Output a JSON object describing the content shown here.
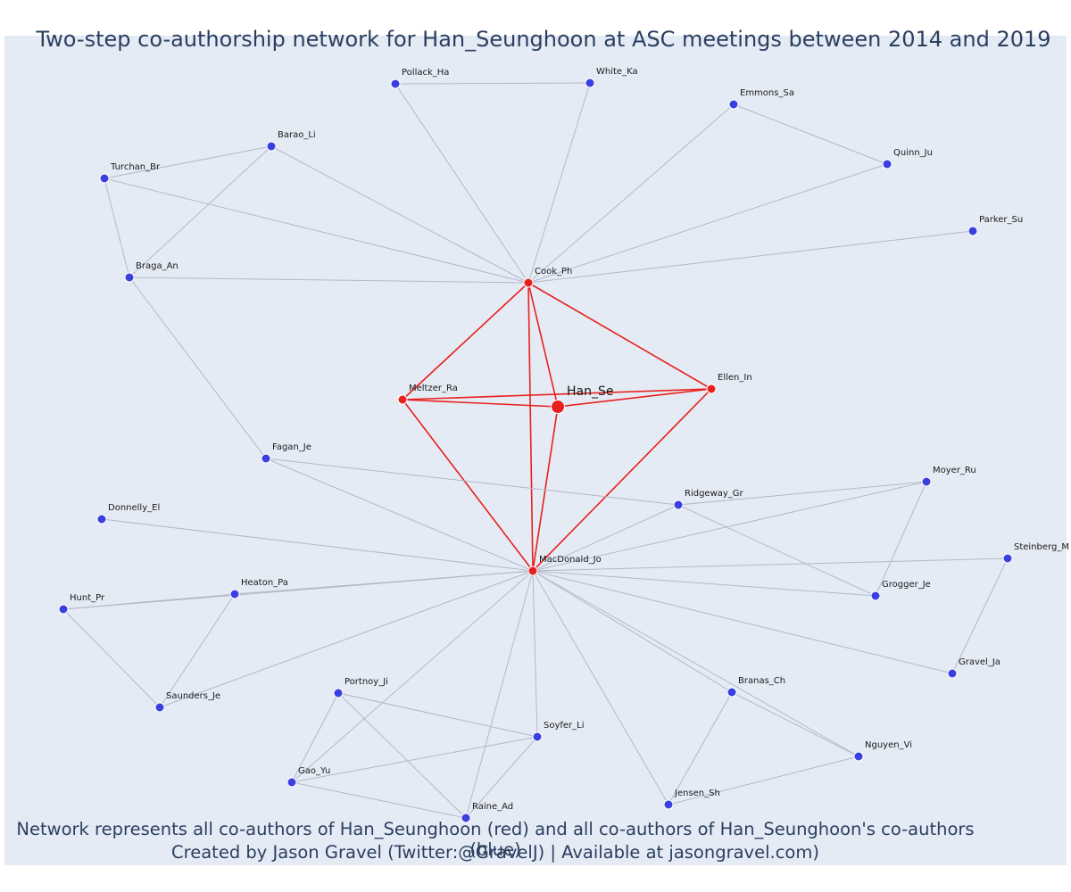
{
  "title": "Two-step co-authorship network for Han_Seunghoon at ASC meetings between 2014 and 2019",
  "footer": {
    "line1": "Network represents all co-authors of Han_Seunghoon (red) and all co-authors of Han_Seunghoon's co-authors (blue)",
    "line2": "Created by Jason Gravel (Twitter:@GravelJ) | Available at jasongravel.com)"
  },
  "colors": {
    "background": "#e5ebf5",
    "coauthor": "#e8201c",
    "second_step": "#3a3fe0",
    "red_edge": "#e8201c",
    "gray_edge": "#b4b8c8"
  },
  "nodes": [
    {
      "id": "Han_Se",
      "label": "Han_Se",
      "group": "ego"
    },
    {
      "id": "Cook_Ph",
      "label": "Cook_Ph",
      "group": "red"
    },
    {
      "id": "Meltzer_Ra",
      "label": "Meltzer_Ra",
      "group": "red"
    },
    {
      "id": "Ellen_In",
      "label": "Ellen_In",
      "group": "red"
    },
    {
      "id": "MacDonald_Jo",
      "label": "MacDonald_Jo",
      "group": "red"
    },
    {
      "id": "Pollack_Ha",
      "label": "Pollack_Ha",
      "group": "blue"
    },
    {
      "id": "White_Ka",
      "label": "White_Ka",
      "group": "blue"
    },
    {
      "id": "Emmons_Sa",
      "label": "Emmons_Sa",
      "group": "blue"
    },
    {
      "id": "Quinn_Ju",
      "label": "Quinn_Ju",
      "group": "blue"
    },
    {
      "id": "Parker_Su",
      "label": "Parker_Su",
      "group": "blue"
    },
    {
      "id": "Barao_Li",
      "label": "Barao_Li",
      "group": "blue"
    },
    {
      "id": "Turchan_Br",
      "label": "Turchan_Br",
      "group": "blue"
    },
    {
      "id": "Braga_An",
      "label": "Braga_An",
      "group": "blue"
    },
    {
      "id": "Fagan_Je",
      "label": "Fagan_Je",
      "group": "blue"
    },
    {
      "id": "Donnelly_El",
      "label": "Donnelly_El",
      "group": "blue"
    },
    {
      "id": "Ridgeway_Gr",
      "label": "Ridgeway_Gr",
      "group": "blue"
    },
    {
      "id": "Moyer_Ru",
      "label": "Moyer_Ru",
      "group": "blue"
    },
    {
      "id": "Steinberg_M",
      "label": "Steinberg_M",
      "group": "blue"
    },
    {
      "id": "Grogger_Je",
      "label": "Grogger_Je",
      "group": "blue"
    },
    {
      "id": "Gravel_Ja",
      "label": "Gravel_Ja",
      "group": "blue"
    },
    {
      "id": "Heaton_Pa",
      "label": "Heaton_Pa",
      "group": "blue"
    },
    {
      "id": "Hunt_Pr",
      "label": "Hunt_Pr",
      "group": "blue"
    },
    {
      "id": "Saunders_Je",
      "label": "Saunders_Je",
      "group": "blue"
    },
    {
      "id": "Portnoy_Ji",
      "label": "Portnoy_Ji",
      "group": "blue"
    },
    {
      "id": "Soyfer_Li",
      "label": "Soyfer_Li",
      "group": "blue"
    },
    {
      "id": "Gao_Yu",
      "label": "Gao_Yu",
      "group": "blue"
    },
    {
      "id": "Raine_Ad",
      "label": "Raine_Ad",
      "group": "blue"
    },
    {
      "id": "Branas_Ch",
      "label": "Branas_Ch",
      "group": "blue"
    },
    {
      "id": "Nguyen_Vi",
      "label": "Nguyen_Vi",
      "group": "blue"
    },
    {
      "id": "Jensen_Sh",
      "label": "Jensen_Sh",
      "group": "blue"
    }
  ],
  "edges": [
    [
      "Han_Se",
      "Cook_Ph"
    ],
    [
      "Han_Se",
      "Meltzer_Ra"
    ],
    [
      "Han_Se",
      "Ellen_In"
    ],
    [
      "Han_Se",
      "MacDonald_Jo"
    ],
    [
      "Cook_Ph",
      "Meltzer_Ra"
    ],
    [
      "Cook_Ph",
      "Ellen_In"
    ],
    [
      "Cook_Ph",
      "MacDonald_Jo"
    ],
    [
      "Meltzer_Ra",
      "Ellen_In"
    ],
    [
      "Meltzer_Ra",
      "MacDonald_Jo"
    ],
    [
      "Ellen_In",
      "MacDonald_Jo"
    ],
    [
      "Cook_Ph",
      "Pollack_Ha"
    ],
    [
      "Cook_Ph",
      "White_Ka"
    ],
    [
      "Pollack_Ha",
      "White_Ka"
    ],
    [
      "Cook_Ph",
      "Emmons_Sa"
    ],
    [
      "Cook_Ph",
      "Quinn_Ju"
    ],
    [
      "Emmons_Sa",
      "Quinn_Ju"
    ],
    [
      "Cook_Ph",
      "Parker_Su"
    ],
    [
      "Cook_Ph",
      "Barao_Li"
    ],
    [
      "Cook_Ph",
      "Turchan_Br"
    ],
    [
      "Cook_Ph",
      "Braga_An"
    ],
    [
      "Turchan_Br",
      "Barao_Li"
    ],
    [
      "Turchan_Br",
      "Braga_An"
    ],
    [
      "Barao_Li",
      "Braga_An"
    ],
    [
      "Braga_An",
      "Fagan_Je"
    ],
    [
      "Fagan_Je",
      "MacDonald_Jo"
    ],
    [
      "Fagan_Je",
      "Ridgeway_Gr"
    ],
    [
      "MacDonald_Jo",
      "Donnelly_El"
    ],
    [
      "MacDonald_Jo",
      "Ridgeway_Gr"
    ],
    [
      "MacDonald_Jo",
      "Moyer_Ru"
    ],
    [
      "MacDonald_Jo",
      "Steinberg_M"
    ],
    [
      "MacDonald_Jo",
      "Grogger_Je"
    ],
    [
      "MacDonald_Jo",
      "Gravel_Ja"
    ],
    [
      "MacDonald_Jo",
      "Heaton_Pa"
    ],
    [
      "MacDonald_Jo",
      "Hunt_Pr"
    ],
    [
      "MacDonald_Jo",
      "Saunders_Je"
    ],
    [
      "MacDonald_Jo",
      "Gao_Yu"
    ],
    [
      "MacDonald_Jo",
      "Raine_Ad"
    ],
    [
      "MacDonald_Jo",
      "Soyfer_Li"
    ],
    [
      "MacDonald_Jo",
      "Jensen_Sh"
    ],
    [
      "MacDonald_Jo",
      "Branas_Ch"
    ],
    [
      "MacDonald_Jo",
      "Nguyen_Vi"
    ],
    [
      "Ridgeway_Gr",
      "Moyer_Ru"
    ],
    [
      "Ridgeway_Gr",
      "Grogger_Je"
    ],
    [
      "Moyer_Ru",
      "Grogger_Je"
    ],
    [
      "Steinberg_M",
      "Gravel_Ja"
    ],
    [
      "Heaton_Pa",
      "Hunt_Pr"
    ],
    [
      "Heaton_Pa",
      "Saunders_Je"
    ],
    [
      "Hunt_Pr",
      "Saunders_Je"
    ],
    [
      "Portnoy_Ji",
      "Gao_Yu"
    ],
    [
      "Portnoy_Ji",
      "Soyfer_Li"
    ],
    [
      "Portnoy_Ji",
      "Raine_Ad"
    ],
    [
      "Gao_Yu",
      "Soyfer_Li"
    ],
    [
      "Gao_Yu",
      "Raine_Ad"
    ],
    [
      "Soyfer_Li",
      "Raine_Ad"
    ],
    [
      "Branas_Ch",
      "Nguyen_Vi"
    ],
    [
      "Branas_Ch",
      "Jensen_Sh"
    ],
    [
      "Jensen_Sh",
      "Nguyen_Vi"
    ]
  ]
}
